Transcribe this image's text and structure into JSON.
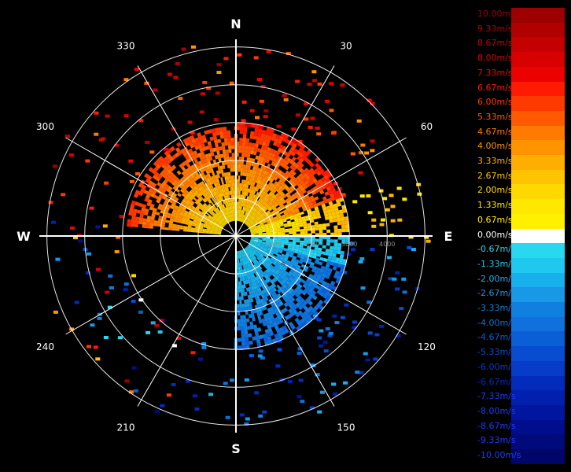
{
  "chart_data": {
    "type": "polar-radar",
    "compass": {
      "north": "N",
      "south": "S",
      "east": "E",
      "west": "W"
    },
    "azimuth_labels": [
      {
        "angle": 30,
        "text": "30"
      },
      {
        "angle": 60,
        "text": "60"
      },
      {
        "angle": 120,
        "text": "120"
      },
      {
        "angle": 150,
        "text": "150"
      },
      {
        "angle": 210,
        "text": "210"
      },
      {
        "angle": 240,
        "text": "240"
      },
      {
        "angle": 300,
        "text": "300"
      },
      {
        "angle": 330,
        "text": "330"
      }
    ],
    "range_rings": [
      1000,
      2000,
      3000,
      4000,
      5000
    ],
    "range_labels": [
      "1000",
      "2000",
      "3000",
      "4000"
    ],
    "max_range": 5200,
    "colorbar": {
      "unit": "m/s",
      "labels": [
        "10.00m/s",
        "9.33m/s",
        "8.67m/s",
        "8.00m/s",
        "7.33m/s",
        "6.67m/s",
        "6.00m/s",
        "5.33m/s",
        "4.67m/s",
        "4.00m/s",
        "3.33m/s",
        "2.67m/s",
        "2.00m/s",
        "1.33m/s",
        "0.67m/s",
        "0.00m/s",
        "-0.67m/s",
        "-1.33m/s",
        "-2.00m/s",
        "-2.67m/s",
        "-3.33m/s",
        "-4.00m/s",
        "-4.67m/s",
        "-5.33m/s",
        "-6.00m/s",
        "-6.67m/s",
        "-7.33m/s",
        "-8.00m/s",
        "-8.67m/s",
        "-9.33m/s",
        "-10.00m/s"
      ],
      "colors": [
        "#9c0000",
        "#b00000",
        "#c40000",
        "#d80000",
        "#ec0000",
        "#ff1a00",
        "#ff3a00",
        "#ff5a00",
        "#ff7a00",
        "#ff9400",
        "#ffae00",
        "#ffc400",
        "#ffd800",
        "#ffe800",
        "#fff000",
        "#ffffff",
        "#28d8f0",
        "#20c8f0",
        "#18b0ec",
        "#1898e6",
        "#1080e0",
        "#1070dc",
        "#0a5ed6",
        "#084cd0",
        "#063cc8",
        "#042cbc",
        "#0220ae",
        "#00169e",
        "#000e8c",
        "#000a7a",
        "#000668"
      ]
    },
    "velocity_field": {
      "description_units": "azimuth in degrees clockwise from north, range in meters, velocity in m/s",
      "sectors": [
        {
          "az_start": 275,
          "az_end": 360,
          "range_min": 400,
          "range_max": 2900,
          "velocity": 5.0
        },
        {
          "az_start": 0,
          "az_end": 70,
          "range_min": 400,
          "range_max": 3000,
          "velocity": 5.5
        },
        {
          "az_start": 70,
          "az_end": 90,
          "range_min": 400,
          "range_max": 3000,
          "velocity": 2.5
        },
        {
          "az_start": 90,
          "az_end": 105,
          "range_min": 400,
          "range_max": 3000,
          "velocity": -1.3
        },
        {
          "az_start": 105,
          "az_end": 180,
          "range_min": 400,
          "range_max": 3000,
          "velocity": -3.5
        }
      ]
    }
  }
}
